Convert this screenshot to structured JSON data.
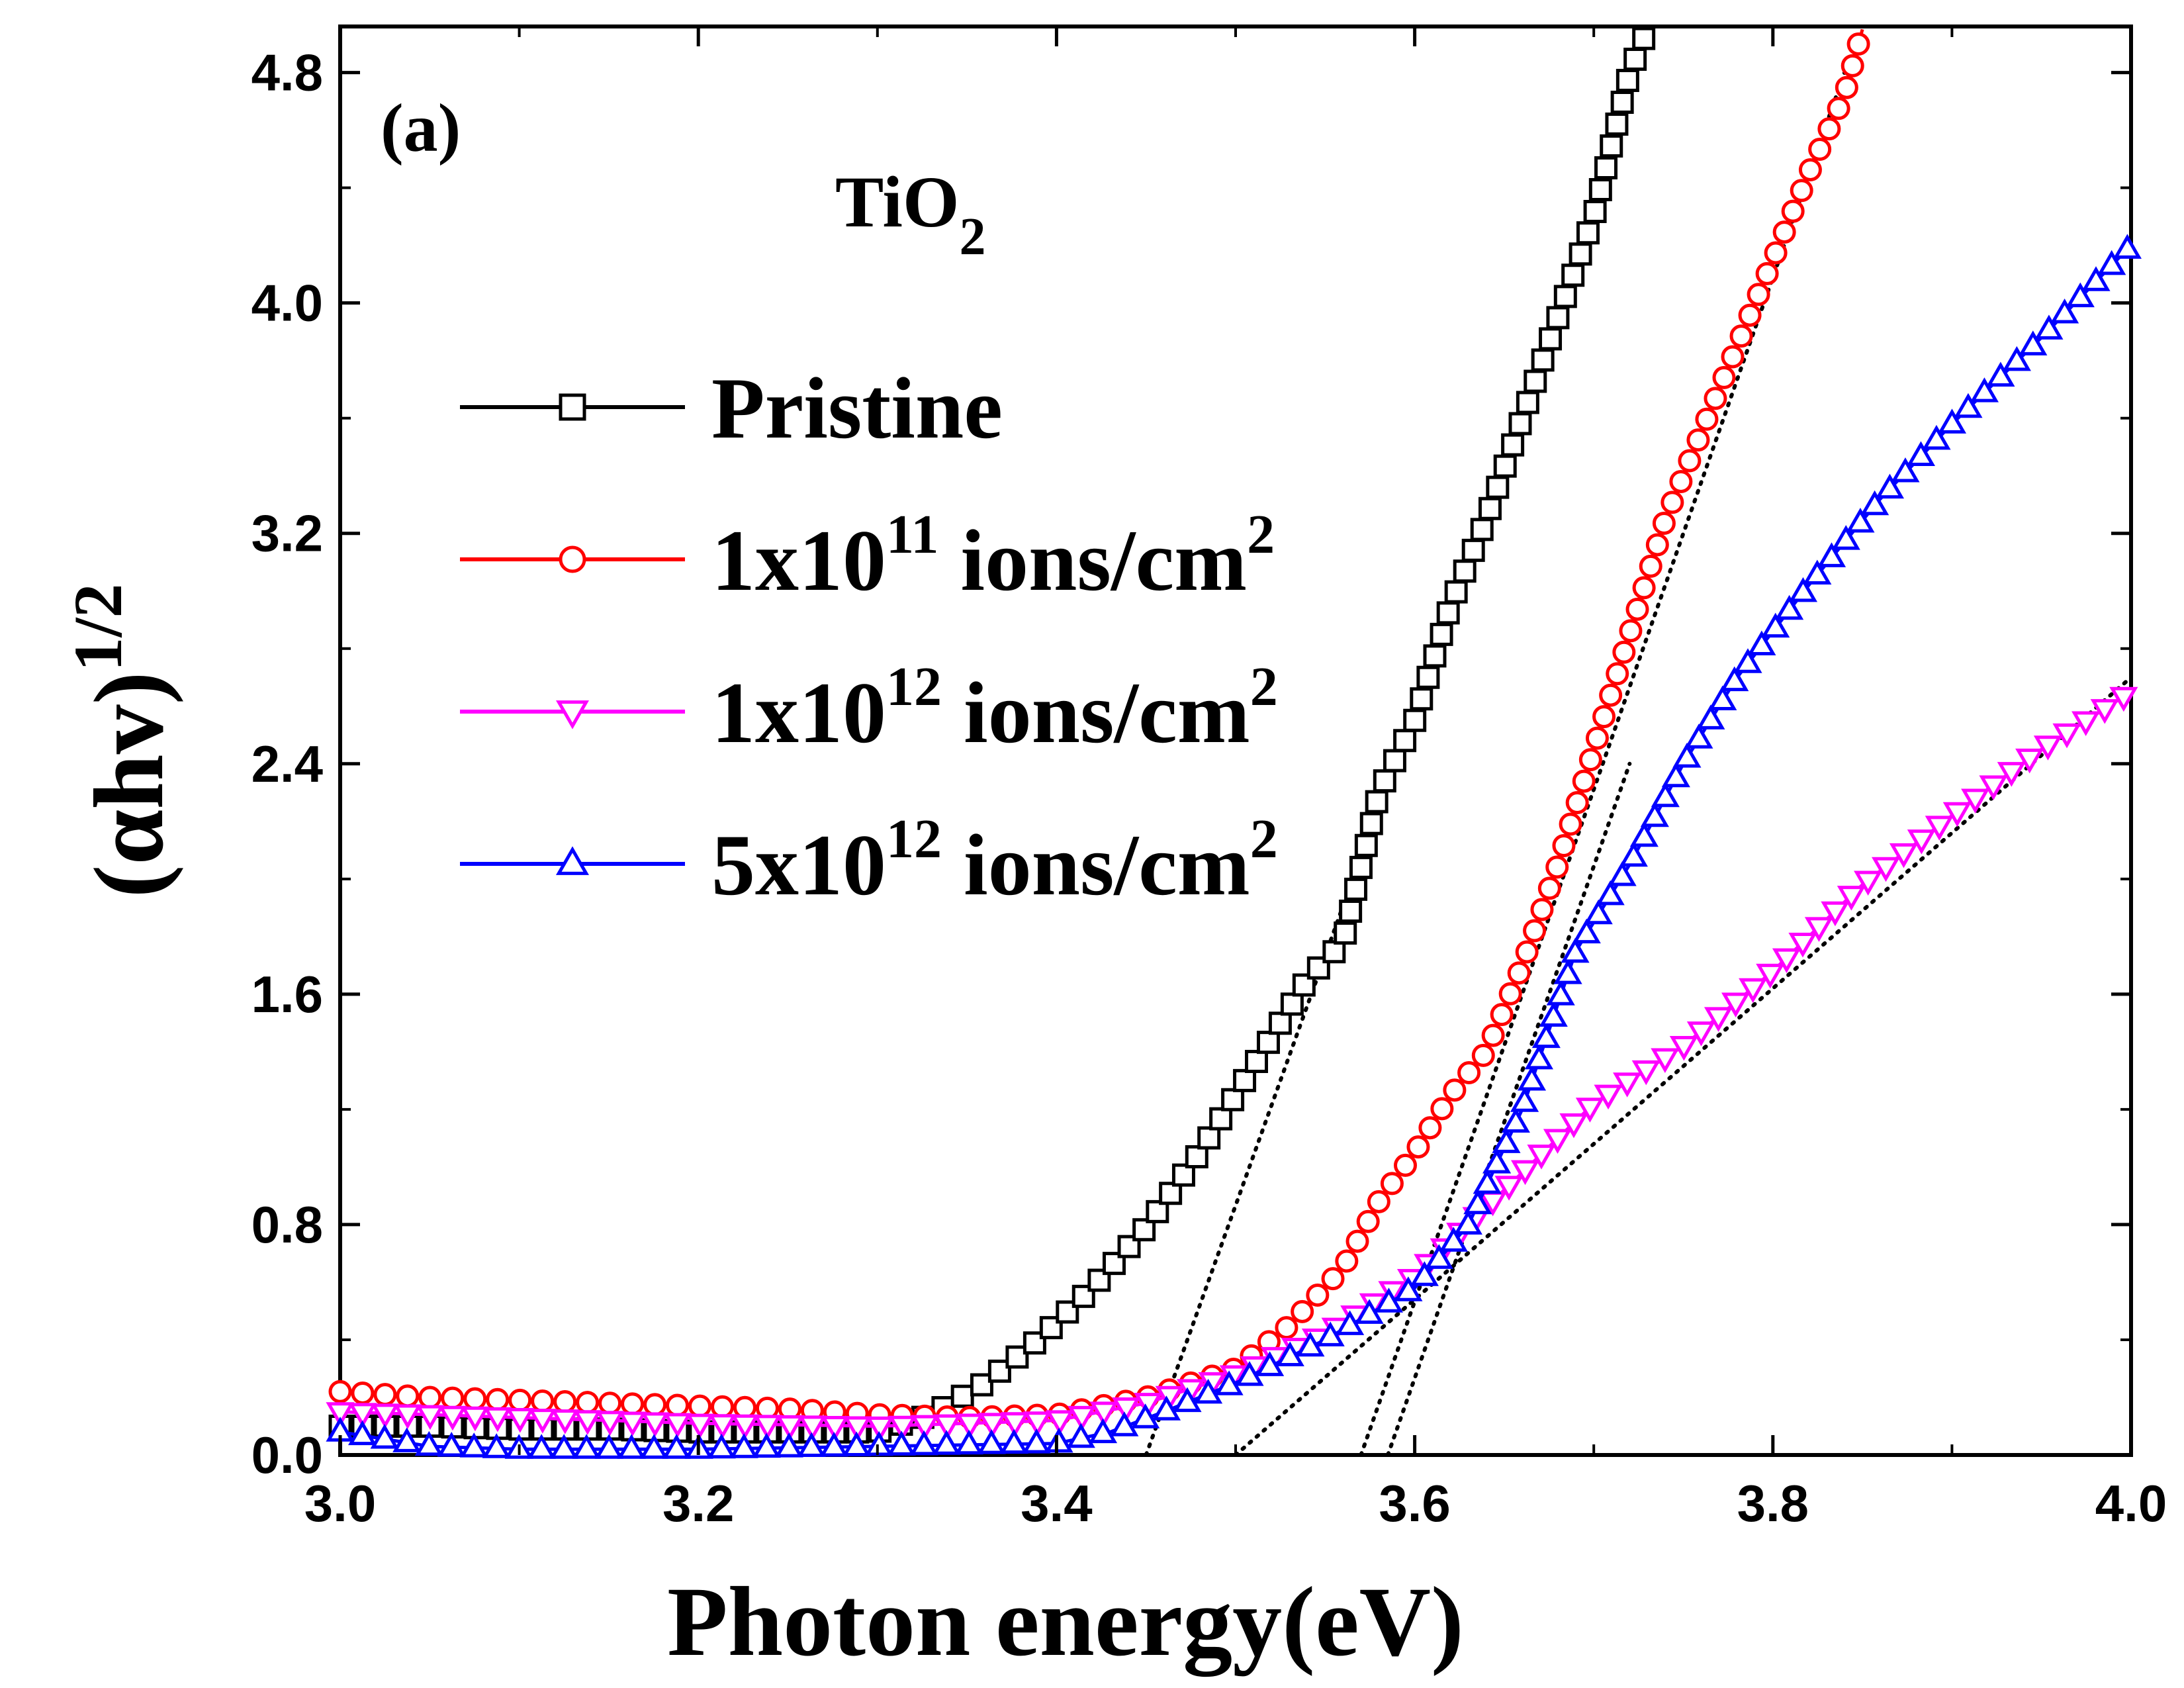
{
  "chart_data": {
    "type": "line",
    "panel_label": "(a)",
    "material": {
      "base": "TiO",
      "sub": "2"
    },
    "xlabel": "Photon energy(eV)",
    "ylabel": {
      "main": "(αhv)",
      "sup": "1/2"
    },
    "xlim": [
      3.0,
      4.0
    ],
    "ylim": [
      0.0,
      4.96
    ],
    "xticks": [
      "3.0",
      "3.2",
      "3.4",
      "3.6",
      "3.8",
      "4.0"
    ],
    "yticks": [
      "0.0",
      "0.8",
      "1.6",
      "2.4",
      "3.2",
      "4.0",
      "4.8"
    ],
    "series": [
      {
        "name": "Pristine",
        "label": {
          "pre": "Pristine",
          "sup": "",
          "post": ""
        },
        "color": "#000000",
        "marker": "square",
        "x": [
          3.0,
          3.05,
          3.1,
          3.15,
          3.2,
          3.25,
          3.3,
          3.33,
          3.36,
          3.39,
          3.42,
          3.45,
          3.48,
          3.5,
          3.52,
          3.54,
          3.56,
          3.58,
          3.6,
          3.62,
          3.64,
          3.66,
          3.68,
          3.7,
          3.71,
          3.72,
          3.73
        ],
        "y": [
          0.1,
          0.1,
          0.09,
          0.09,
          0.08,
          0.08,
          0.08,
          0.14,
          0.25,
          0.4,
          0.58,
          0.79,
          1.05,
          1.25,
          1.45,
          1.65,
          1.78,
          2.3,
          2.55,
          2.95,
          3.25,
          3.6,
          3.95,
          4.3,
          4.55,
          4.8,
          4.95
        ]
      },
      {
        "name": "1x10^11 ions/cm^2",
        "label": {
          "pre": "1x10",
          "sup": "11",
          "post": " ions/cm",
          "sup2": "2"
        },
        "color": "#ff0000",
        "marker": "circle",
        "x": [
          3.0,
          3.05,
          3.1,
          3.15,
          3.2,
          3.25,
          3.3,
          3.35,
          3.4,
          3.45,
          3.5,
          3.53,
          3.56,
          3.58,
          3.6,
          3.62,
          3.64,
          3.66,
          3.68,
          3.7,
          3.72,
          3.74,
          3.76,
          3.78,
          3.8,
          3.82,
          3.84,
          3.85
        ],
        "y": [
          0.22,
          0.2,
          0.19,
          0.18,
          0.17,
          0.16,
          0.14,
          0.13,
          0.14,
          0.2,
          0.3,
          0.45,
          0.65,
          0.88,
          1.05,
          1.25,
          1.4,
          1.7,
          2.05,
          2.45,
          2.85,
          3.25,
          3.55,
          3.85,
          4.15,
          4.45,
          4.72,
          4.95
        ]
      },
      {
        "name": "1x10^12 ions/cm^2",
        "label": {
          "pre": "1x10",
          "sup": "12",
          "post": " ions/cm",
          "sup2": "2"
        },
        "color": "#ff00ff",
        "marker": "triangle-down",
        "x": [
          3.0,
          3.1,
          3.2,
          3.3,
          3.4,
          3.45,
          3.5,
          3.55,
          3.6,
          3.65,
          3.7,
          3.75,
          3.8,
          3.85,
          3.9,
          3.95,
          4.0
        ],
        "y": [
          0.15,
          0.13,
          0.11,
          0.1,
          0.12,
          0.18,
          0.28,
          0.42,
          0.62,
          0.92,
          1.22,
          1.42,
          1.68,
          1.98,
          2.22,
          2.45,
          2.65
        ]
      },
      {
        "name": "5x10^12 ions/cm^2",
        "label": {
          "pre": "5x10",
          "sup": "12",
          "post": " ions/cm",
          "sup2": "2"
        },
        "color": "#0000ff",
        "marker": "triangle-up",
        "x": [
          3.0,
          3.05,
          3.1,
          3.2,
          3.3,
          3.4,
          3.43,
          3.46,
          3.5,
          3.55,
          3.6,
          3.63,
          3.66,
          3.69,
          3.72,
          3.75,
          3.78,
          3.82,
          3.86,
          3.9,
          3.95,
          4.0
        ],
        "y": [
          0.08,
          0.03,
          0.02,
          0.02,
          0.03,
          0.04,
          0.08,
          0.15,
          0.25,
          0.4,
          0.58,
          0.8,
          1.2,
          1.75,
          2.05,
          2.4,
          2.7,
          3.02,
          3.32,
          3.58,
          3.88,
          4.2
        ]
      }
    ],
    "fit_lines": [
      {
        "name": "fit-pristine",
        "x": [
          3.45,
          3.6
        ],
        "y": [
          0.0,
          2.6
        ]
      },
      {
        "name": "fit-1e11",
        "x": [
          3.57,
          3.84
        ],
        "y": [
          0.0,
          4.8
        ]
      },
      {
        "name": "fit-5e12",
        "x": [
          3.585,
          3.72
        ],
        "y": [
          0.0,
          2.4
        ]
      },
      {
        "name": "fit-1e12",
        "x": [
          3.5,
          4.0
        ],
        "y": [
          0.0,
          2.7
        ]
      }
    ]
  }
}
